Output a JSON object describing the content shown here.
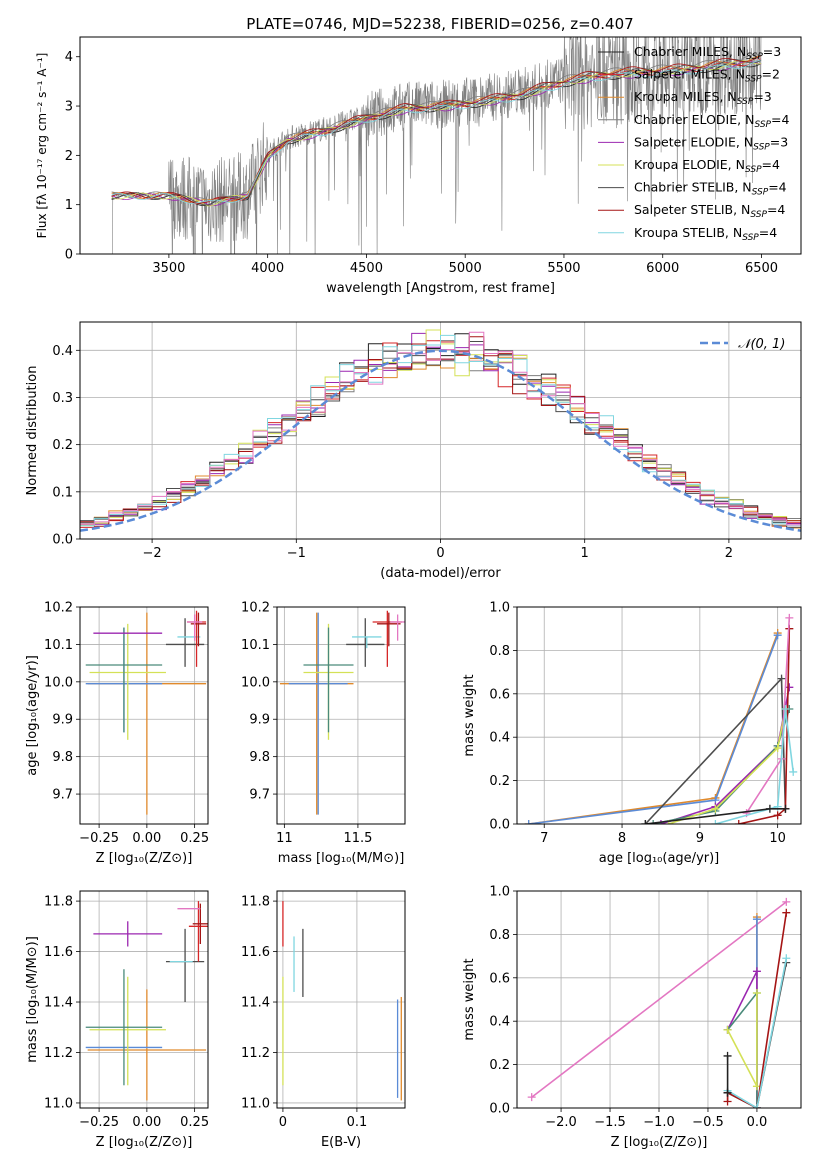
{
  "figure": {
    "title": "PLATE=0746, MJD=52238, FIBERID=0256, z=0.407",
    "colors": {
      "c_miles": "#222222",
      "s_miles": "#d62728",
      "k_miles": "#e08a2c",
      "c_elodie": "#7f7f7f",
      "s_elodie": "#9b27b0",
      "k_elodie": "#d4e157",
      "c_stelib": "#4d4d4d",
      "s_stelib": "#a51515",
      "k_stelib": "#80d6e0",
      "blue": "#5b8bd6",
      "pink": "#e377c2",
      "green_teal": "#4a8a7a"
    }
  },
  "chart_data": [
    {
      "id": "spectrum",
      "type": "line",
      "xlabel": "wavelength [Angstrom, rest frame]",
      "ylabel": "Flux [fλ 10⁻¹⁷ erg cm⁻² s⁻¹ A⁻¹]",
      "xlim": [
        3050,
        6700
      ],
      "ylim": [
        0,
        4.4
      ],
      "xticks": [
        3500,
        4000,
        4500,
        5000,
        5500,
        6000,
        6500
      ],
      "yticks": [
        0,
        1,
        2,
        3,
        4
      ],
      "grid": false,
      "legend_position": "top-right",
      "legend": [
        "Chabrier MILES, N_SSP=3",
        "Salpeter MILES, N_SSP=2",
        "Kroupa MILES, N_SSP=3",
        "Chabrier ELODIE, N_SSP=4",
        "Salpeter ELODIE, N_SSP=3",
        "Kroupa ELODIE, N_SSP=4",
        "Chabrier STELIB, N_SSP=4",
        "Salpeter STELIB, N_SSP=4",
        "Kroupa STELIB, N_SSP=4"
      ],
      "legend_colors": [
        "#222222",
        "#d62728",
        "#e08a2c",
        "#7f7f7f",
        "#9b27b0",
        "#d4e157",
        "#4d4d4d",
        "#a51515",
        "#80d6e0"
      ],
      "data_range": [
        3200,
        6500
      ],
      "model_continuum": [
        [
          3200,
          1.2
        ],
        [
          3500,
          1.2
        ],
        [
          3700,
          1.05
        ],
        [
          3900,
          1.2
        ],
        [
          4000,
          2.0
        ],
        [
          4100,
          2.35
        ],
        [
          4300,
          2.55
        ],
        [
          4500,
          2.8
        ],
        [
          4700,
          3.0
        ],
        [
          4900,
          3.05
        ],
        [
          5100,
          3.15
        ],
        [
          5300,
          3.3
        ],
        [
          5500,
          3.55
        ],
        [
          5700,
          3.7
        ],
        [
          5900,
          3.75
        ],
        [
          6100,
          3.8
        ],
        [
          6300,
          3.9
        ],
        [
          6500,
          4.0
        ]
      ]
    },
    {
      "id": "residuals",
      "type": "step",
      "xlabel": "(data-model)/error",
      "ylabel": "Normed distribution",
      "xlim": [
        -2.5,
        2.5
      ],
      "ylim": [
        0,
        0.46
      ],
      "xticks": [
        -2,
        -1,
        0,
        1,
        2
      ],
      "yticks": [
        0.0,
        0.1,
        0.2,
        0.3,
        0.4
      ],
      "grid": true,
      "legend_position": "top-right",
      "legend": [
        "𝒩(0, 1)"
      ],
      "series_colors": [
        "#222222",
        "#d62728",
        "#e08a2c",
        "#7f7f7f",
        "#9b27b0",
        "#d4e157",
        "#4d4d4d",
        "#a51515",
        "#80d6e0",
        "#e377c2"
      ]
    },
    {
      "id": "age_vs_Z",
      "type": "errorbar",
      "xlabel": "Z [log₁₀(Z/Z⊙)]",
      "ylabel": "age  [log₁₀(age/yr)]",
      "xlim": [
        -0.35,
        0.32
      ],
      "ylim": [
        9.62,
        10.2
      ],
      "xticks": [
        -0.25,
        0.0,
        0.25
      ],
      "xticklabels": [
        "−0.25",
        "0.00",
        "0.25"
      ],
      "yticks": [
        9.7,
        9.8,
        9.9,
        10.0,
        10.1,
        10.2
      ],
      "grid": true,
      "points": [
        {
          "x": 0.0,
          "y": 9.995,
          "xerr": 0.31,
          "yerr_lo": 0.35,
          "yerr_hi": 0.19,
          "color": "#e08a2c"
        },
        {
          "x": -0.12,
          "y": 9.995,
          "xerr": 0.2,
          "yerr_lo": 0.13,
          "yerr_hi": 0.15,
          "color": "#5b8bd6"
        },
        {
          "x": -0.1,
          "y": 10.025,
          "xerr": 0.2,
          "yerr_lo": 0.18,
          "yerr_hi": 0.13,
          "color": "#d4e157"
        },
        {
          "x": -0.12,
          "y": 10.045,
          "xerr": 0.2,
          "yerr_lo": 0.18,
          "yerr_hi": 0.1,
          "color": "#4a8a7a"
        },
        {
          "x": -0.1,
          "y": 10.13,
          "xerr": 0.18,
          "yerr_lo": 0.0,
          "yerr_hi": 0.0,
          "color": "#9b27b0"
        },
        {
          "x": 0.2,
          "y": 10.1,
          "xerr": 0.1,
          "yerr_lo": 0.06,
          "yerr_hi": 0.07,
          "color": "#4d4d4d"
        },
        {
          "x": 0.22,
          "y": 10.12,
          "xerr": 0.06,
          "yerr_lo": 0.0,
          "yerr_hi": 0.0,
          "color": "#80d6e0"
        },
        {
          "x": 0.26,
          "y": 10.16,
          "xerr": 0.05,
          "yerr_lo": 0.12,
          "yerr_hi": 0.03,
          "color": "#d62728"
        },
        {
          "x": 0.27,
          "y": 10.155,
          "xerr": 0.04,
          "yerr_lo": 0.06,
          "yerr_hi": 0.03,
          "color": "#a51515"
        },
        {
          "x": 0.25,
          "y": 10.16,
          "xerr": 0.04,
          "yerr_lo": 0.05,
          "yerr_hi": 0.02,
          "color": "#e377c2"
        }
      ]
    },
    {
      "id": "age_vs_mass",
      "type": "errorbar",
      "xlabel": "mass [log₁₀(M/M⊙)]",
      "ylabel": "",
      "xlim": [
        10.95,
        11.82
      ],
      "ylim": [
        9.62,
        10.2
      ],
      "xticks": [
        11.0,
        11.5
      ],
      "yticks": [
        9.7,
        9.8,
        9.9,
        10.0,
        10.1,
        10.2
      ],
      "grid": true,
      "points": [
        {
          "x": 11.22,
          "y": 9.995,
          "xerr": 0.25,
          "yerr_lo": 0.35,
          "yerr_hi": 0.19,
          "color": "#e08a2c"
        },
        {
          "x": 11.23,
          "y": 9.995,
          "xerr": 0.2,
          "yerr_lo": 0.35,
          "yerr_hi": 0.19,
          "color": "#5b8bd6"
        },
        {
          "x": 11.3,
          "y": 10.025,
          "xerr": 0.17,
          "yerr_lo": 0.18,
          "yerr_hi": 0.13,
          "color": "#d4e157"
        },
        {
          "x": 11.3,
          "y": 10.045,
          "xerr": 0.17,
          "yerr_lo": 0.18,
          "yerr_hi": 0.1,
          "color": "#4a8a7a"
        },
        {
          "x": 11.67,
          "y": 10.13,
          "xerr": 0.0,
          "yerr_lo": 0.0,
          "yerr_hi": 0.0,
          "color": "#9b27b0"
        },
        {
          "x": 11.55,
          "y": 10.1,
          "xerr": 0.13,
          "yerr_lo": 0.06,
          "yerr_hi": 0.07,
          "color": "#4d4d4d"
        },
        {
          "x": 11.56,
          "y": 10.12,
          "xerr": 0.1,
          "yerr_lo": 0.03,
          "yerr_hi": 0.0,
          "color": "#80d6e0"
        },
        {
          "x": 11.7,
          "y": 10.16,
          "xerr": 0.1,
          "yerr_lo": 0.12,
          "yerr_hi": 0.03,
          "color": "#d62728"
        },
        {
          "x": 11.71,
          "y": 10.155,
          "xerr": 0.08,
          "yerr_lo": 0.06,
          "yerr_hi": 0.03,
          "color": "#a51515"
        },
        {
          "x": 11.77,
          "y": 10.16,
          "xerr": 0.05,
          "yerr_lo": 0.05,
          "yerr_hi": 0.02,
          "color": "#e377c2"
        }
      ]
    },
    {
      "id": "massweight_vs_age",
      "type": "line",
      "xlabel": "age  [log₁₀(age/yr)]",
      "ylabel": "mass weight",
      "xlim": [
        6.65,
        10.3
      ],
      "ylim": [
        0,
        1.0
      ],
      "xticks": [
        7,
        8,
        9,
        10
      ],
      "yticks": [
        0.0,
        0.2,
        0.4,
        0.6,
        0.8,
        1.0
      ],
      "grid": true,
      "series": [
        {
          "color": "#e08a2c",
          "points": [
            [
              6.8,
              0.0
            ],
            [
              9.2,
              0.12
            ],
            [
              10.0,
              0.88
            ]
          ]
        },
        {
          "color": "#5b8bd6",
          "points": [
            [
              6.8,
              0.0
            ],
            [
              9.2,
              0.11
            ],
            [
              10.0,
              0.87
            ]
          ]
        },
        {
          "color": "#4d4d4d",
          "points": [
            [
              8.3,
              0.0
            ],
            [
              10.05,
              0.67
            ],
            [
              10.1,
              0.07
            ]
          ]
        },
        {
          "color": "#9b27b0",
          "points": [
            [
              8.5,
              0.0
            ],
            [
              9.2,
              0.08
            ],
            [
              10.0,
              0.36
            ],
            [
              10.15,
              0.63
            ]
          ]
        },
        {
          "color": "#4a8a7a",
          "points": [
            [
              8.4,
              0.0
            ],
            [
              9.2,
              0.06
            ],
            [
              10.0,
              0.36
            ],
            [
              10.15,
              0.53
            ]
          ]
        },
        {
          "color": "#d4e157",
          "points": [
            [
              8.6,
              0.0
            ],
            [
              9.2,
              0.07
            ],
            [
              10.0,
              0.35
            ],
            [
              10.1,
              0.53
            ]
          ]
        },
        {
          "color": "#a51515",
          "points": [
            [
              9.5,
              0.0
            ],
            [
              10.0,
              0.04
            ],
            [
              10.1,
              0.07
            ],
            [
              10.15,
              0.9
            ]
          ]
        },
        {
          "color": "#e377c2",
          "points": [
            [
              9.6,
              0.05
            ],
            [
              10.05,
              0.3
            ],
            [
              10.15,
              0.95
            ]
          ]
        },
        {
          "color": "#80d6e0",
          "points": [
            [
              9.2,
              0.0
            ],
            [
              10.0,
              0.08
            ],
            [
              10.1,
              0.53
            ],
            [
              10.2,
              0.24
            ]
          ]
        },
        {
          "color": "#222222",
          "points": [
            [
              8.3,
              0.0
            ],
            [
              9.9,
              0.07
            ],
            [
              10.1,
              0.07
            ]
          ]
        }
      ]
    },
    {
      "id": "mass_vs_Z",
      "type": "errorbar",
      "xlabel": "Z [log₁₀(Z/Z⊙)]",
      "ylabel": "mass [log₁₀(M/M⊙)]",
      "xlim": [
        -0.35,
        0.32
      ],
      "ylim": [
        10.98,
        11.84
      ],
      "xticks": [
        -0.25,
        0.0,
        0.25
      ],
      "xticklabels": [
        "−0.25",
        "0.00",
        "0.25"
      ],
      "yticks": [
        11.0,
        11.2,
        11.4,
        11.6,
        11.8
      ],
      "grid": true,
      "points": [
        {
          "x": 0.0,
          "y": 11.21,
          "xerr": 0.31,
          "yerr_lo": 0.2,
          "yerr_hi": 0.24,
          "color": "#e08a2c"
        },
        {
          "x": -0.12,
          "y": 11.22,
          "xerr": 0.2,
          "yerr_lo": 0.0,
          "yerr_hi": 0.0,
          "color": "#5b8bd6"
        },
        {
          "x": -0.1,
          "y": 11.29,
          "xerr": 0.2,
          "yerr_lo": 0.22,
          "yerr_hi": 0.21,
          "color": "#d4e157"
        },
        {
          "x": -0.12,
          "y": 11.3,
          "xerr": 0.2,
          "yerr_lo": 0.23,
          "yerr_hi": 0.23,
          "color": "#4a8a7a"
        },
        {
          "x": -0.1,
          "y": 11.67,
          "xerr": 0.18,
          "yerr_lo": 0.05,
          "yerr_hi": 0.05,
          "color": "#9b27b0"
        },
        {
          "x": 0.2,
          "y": 11.56,
          "xerr": 0.1,
          "yerr_lo": 0.16,
          "yerr_hi": 0.13,
          "color": "#4d4d4d"
        },
        {
          "x": 0.18,
          "y": 11.56,
          "xerr": 0.06,
          "yerr_lo": 0.0,
          "yerr_hi": 0.0,
          "color": "#80d6e0"
        },
        {
          "x": 0.27,
          "y": 11.7,
          "xerr": 0.05,
          "yerr_lo": 0.14,
          "yerr_hi": 0.1,
          "color": "#d62728"
        },
        {
          "x": 0.28,
          "y": 11.71,
          "xerr": 0.04,
          "yerr_lo": 0.08,
          "yerr_hi": 0.08,
          "color": "#a51515"
        },
        {
          "x": 0.22,
          "y": 11.77,
          "xerr": 0.06,
          "yerr_lo": 0.0,
          "yerr_hi": 0.0,
          "color": "#e377c2"
        }
      ]
    },
    {
      "id": "mass_vs_ebv",
      "type": "errorbar",
      "xlabel": "E(B-V)",
      "ylabel": "",
      "xlim": [
        -0.008,
        0.165
      ],
      "ylim": [
        10.98,
        11.84
      ],
      "xticks": [
        0.0,
        0.1
      ],
      "yticks": [
        11.0,
        11.2,
        11.4,
        11.6,
        11.8
      ],
      "grid": true,
      "points": [
        {
          "x": 0.0,
          "y": 11.3,
          "xerr": 0.0,
          "yerr_lo": 0.23,
          "yerr_hi": 0.2,
          "color": "#d4e157"
        },
        {
          "x": 0.0,
          "y": 11.67,
          "xerr": 0.0,
          "yerr_lo": 0.05,
          "yerr_hi": 0.13,
          "color": "#d62728"
        },
        {
          "x": 0.015,
          "y": 11.56,
          "xerr": 0.0,
          "yerr_lo": 0.12,
          "yerr_hi": 0.1,
          "color": "#80d6e0"
        },
        {
          "x": 0.027,
          "y": 11.56,
          "xerr": 0.0,
          "yerr_lo": 0.14,
          "yerr_hi": 0.13,
          "color": "#4d4d4d"
        },
        {
          "x": 0.155,
          "y": 11.22,
          "xerr": 0.0,
          "yerr_lo": 0.2,
          "yerr_hi": 0.19,
          "color": "#5b8bd6"
        },
        {
          "x": 0.16,
          "y": 11.22,
          "xerr": 0.0,
          "yerr_lo": 0.21,
          "yerr_hi": 0.2,
          "color": "#e08a2c"
        }
      ]
    },
    {
      "id": "massweight_vs_Z",
      "type": "line",
      "xlabel": "Z [log₁₀(Z/Z⊙)]",
      "ylabel": "mass weight",
      "xlim": [
        -2.45,
        0.45
      ],
      "ylim": [
        0,
        1.0
      ],
      "xticks": [
        -2.0,
        -1.5,
        -1.0,
        -0.5,
        0.0
      ],
      "xticklabels": [
        "−2.0",
        "−1.5",
        "−1.0",
        "−0.5",
        "0.0"
      ],
      "yticks": [
        0.0,
        0.2,
        0.4,
        0.6,
        0.8,
        1.0
      ],
      "grid": true,
      "series": [
        {
          "color": "#e377c2",
          "points": [
            [
              -2.3,
              0.05
            ],
            [
              0.3,
              0.95
            ]
          ]
        },
        {
          "color": "#e08a2c",
          "points": [
            [
              0.0,
              0.0
            ],
            [
              0.0,
              0.88
            ]
          ]
        },
        {
          "color": "#5b8bd6",
          "points": [
            [
              0.0,
              0.0
            ],
            [
              0.0,
              0.87
            ]
          ]
        },
        {
          "color": "#9b27b0",
          "points": [
            [
              -0.3,
              0.36
            ],
            [
              0.0,
              0.63
            ],
            [
              0.0,
              0.0
            ]
          ]
        },
        {
          "color": "#4a8a7a",
          "points": [
            [
              -0.3,
              0.36
            ],
            [
              0.0,
              0.53
            ],
            [
              0.0,
              0.0
            ]
          ]
        },
        {
          "color": "#d4e157",
          "points": [
            [
              -0.3,
              0.36
            ],
            [
              0.0,
              0.1
            ],
            [
              0.0,
              0.53
            ]
          ]
        },
        {
          "color": "#4d4d4d",
          "points": [
            [
              -0.3,
              0.07
            ],
            [
              0.0,
              0.0
            ],
            [
              0.3,
              0.67
            ]
          ]
        },
        {
          "color": "#a51515",
          "points": [
            [
              -0.3,
              0.03
            ],
            [
              -0.3,
              0.07
            ],
            [
              0.0,
              0.0
            ],
            [
              0.3,
              0.9
            ]
          ]
        },
        {
          "color": "#80d6e0",
          "points": [
            [
              -0.3,
              0.08
            ],
            [
              0.0,
              0.0
            ],
            [
              0.3,
              0.69
            ]
          ]
        },
        {
          "color": "#222222",
          "points": [
            [
              -0.3,
              0.24
            ],
            [
              -0.3,
              0.07
            ]
          ]
        }
      ]
    }
  ]
}
